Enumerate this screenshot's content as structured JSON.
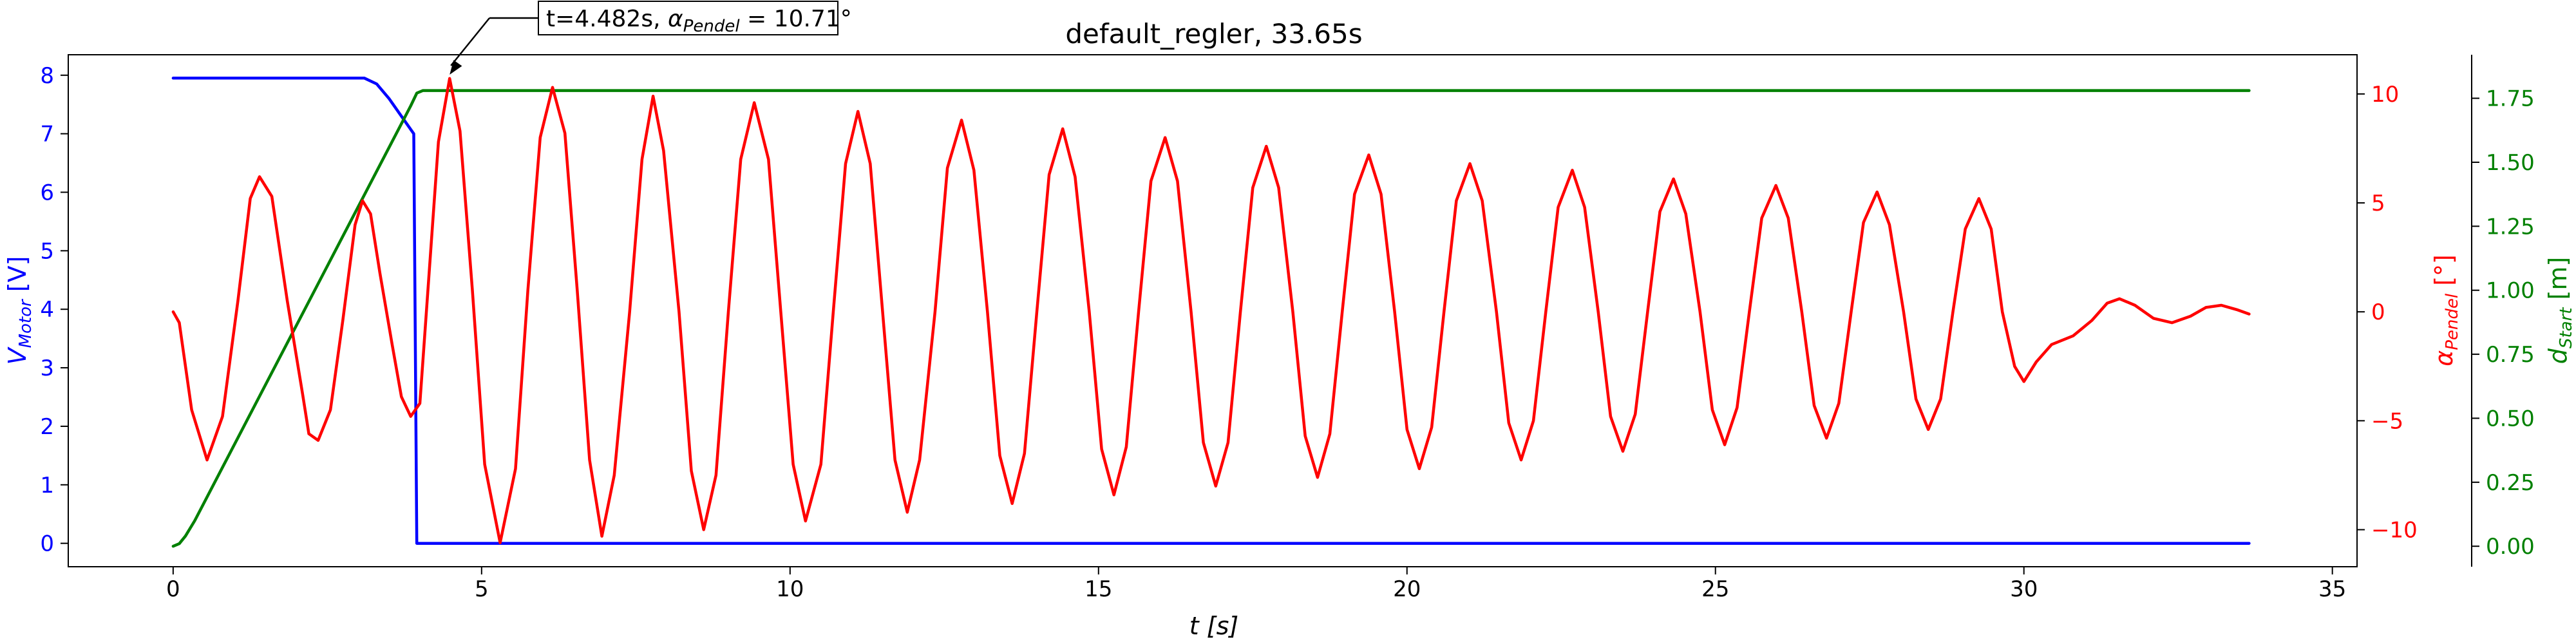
{
  "chart_data": {
    "type": "line",
    "title": "default_regler, 33.65s",
    "xlabel": "t [s]",
    "xlim": [
      -1.7,
      35.4
    ],
    "xticks": [
      0,
      5,
      10,
      15,
      20,
      25,
      30,
      35
    ],
    "grid": false,
    "axes": {
      "motor": {
        "label_main": "V",
        "label_sub": "Motor",
        "label_unit": " [V]",
        "color": "#0000ff",
        "ylim": [
          -0.4,
          8.35
        ],
        "ticks": [
          0,
          1,
          2,
          3,
          4,
          5,
          6,
          7,
          8
        ]
      },
      "pendel": {
        "label_main": "α",
        "label_sub": "Pendel",
        "label_unit": " [°]",
        "color": "#ff0000",
        "ylim": [
          -11.7,
          11.8
        ],
        "ticks": [
          -10,
          -5,
          0,
          5,
          10
        ],
        "tick_labels": [
          "−10",
          "−5",
          "0",
          "5",
          "10"
        ]
      },
      "start": {
        "label_main": "d",
        "label_sub": "Start",
        "label_unit": " [m]",
        "color": "#008000",
        "ylim": [
          -0.08,
          1.92
        ],
        "ticks": [
          0.0,
          0.25,
          0.5,
          0.75,
          1.0,
          1.25,
          1.5,
          1.75
        ],
        "tick_labels": [
          "0.00",
          "0.25",
          "0.50",
          "0.75",
          "1.00",
          "1.25",
          "1.50",
          "1.75"
        ]
      }
    },
    "series": [
      {
        "axis": "motor",
        "points": [
          [
            0,
            7.95
          ],
          [
            3.1,
            7.95
          ],
          [
            3.3,
            7.85
          ],
          [
            3.5,
            7.6
          ],
          [
            3.7,
            7.3
          ],
          [
            3.9,
            7.0
          ],
          [
            3.95,
            0
          ],
          [
            33.65,
            0
          ]
        ]
      },
      {
        "axis": "start",
        "points": [
          [
            0,
            0
          ],
          [
            0.1,
            0.01
          ],
          [
            0.2,
            0.04
          ],
          [
            0.35,
            0.1
          ],
          [
            3.85,
            1.72
          ],
          [
            3.95,
            1.77
          ],
          [
            4.05,
            1.78
          ],
          [
            33.65,
            1.78
          ]
        ]
      },
      {
        "axis": "pendel",
        "points": [
          [
            0,
            0
          ],
          [
            0.1,
            -0.5
          ],
          [
            0.3,
            -4.5
          ],
          [
            0.55,
            -6.8
          ],
          [
            0.8,
            -4.8
          ],
          [
            1.05,
            0.5
          ],
          [
            1.25,
            5.2
          ],
          [
            1.4,
            6.2
          ],
          [
            1.6,
            5.3
          ],
          [
            1.85,
            0.5
          ],
          [
            2.1,
            -3.8
          ],
          [
            2.2,
            -5.6
          ],
          [
            2.35,
            -5.9
          ],
          [
            2.55,
            -4.5
          ],
          [
            2.75,
            -0.4
          ],
          [
            2.95,
            4.0
          ],
          [
            3.07,
            5.1
          ],
          [
            3.2,
            4.5
          ],
          [
            3.35,
            1.8
          ],
          [
            3.55,
            -1.5
          ],
          [
            3.7,
            -3.9
          ],
          [
            3.85,
            -4.8
          ],
          [
            4.0,
            -4.2
          ],
          [
            4.15,
            1.8
          ],
          [
            4.3,
            7.8
          ],
          [
            4.482,
            10.71
          ],
          [
            4.65,
            8.3
          ],
          [
            4.85,
            1.0
          ],
          [
            5.05,
            -7.0
          ],
          [
            5.3,
            -10.6
          ],
          [
            5.55,
            -7.2
          ],
          [
            5.75,
            1.0
          ],
          [
            5.95,
            8.0
          ],
          [
            6.15,
            10.3
          ],
          [
            6.35,
            8.2
          ],
          [
            6.55,
            1.0
          ],
          [
            6.75,
            -6.8
          ],
          [
            6.95,
            -10.3
          ],
          [
            7.15,
            -7.5
          ],
          [
            7.4,
            0
          ],
          [
            7.6,
            7.0
          ],
          [
            7.78,
            9.9
          ],
          [
            7.95,
            7.4
          ],
          [
            8.2,
            0
          ],
          [
            8.4,
            -7.3
          ],
          [
            8.6,
            -10.0
          ],
          [
            8.8,
            -7.5
          ],
          [
            9.0,
            0
          ],
          [
            9.2,
            7.0
          ],
          [
            9.42,
            9.6
          ],
          [
            9.65,
            7.0
          ],
          [
            9.85,
            0
          ],
          [
            10.05,
            -7.0
          ],
          [
            10.25,
            -9.6
          ],
          [
            10.5,
            -7.0
          ],
          [
            10.7,
            0
          ],
          [
            10.9,
            6.8
          ],
          [
            11.1,
            9.2
          ],
          [
            11.3,
            6.8
          ],
          [
            11.5,
            0
          ],
          [
            11.7,
            -6.8
          ],
          [
            11.9,
            -9.2
          ],
          [
            12.1,
            -6.8
          ],
          [
            12.35,
            0
          ],
          [
            12.55,
            6.6
          ],
          [
            12.78,
            8.8
          ],
          [
            12.98,
            6.5
          ],
          [
            13.2,
            0
          ],
          [
            13.4,
            -6.6
          ],
          [
            13.6,
            -8.8
          ],
          [
            13.8,
            -6.5
          ],
          [
            14.0,
            0
          ],
          [
            14.2,
            6.3
          ],
          [
            14.42,
            8.4
          ],
          [
            14.62,
            6.2
          ],
          [
            14.85,
            0
          ],
          [
            15.05,
            -6.3
          ],
          [
            15.25,
            -8.4
          ],
          [
            15.45,
            -6.2
          ],
          [
            15.65,
            0
          ],
          [
            15.85,
            6.0
          ],
          [
            16.08,
            8.0
          ],
          [
            16.28,
            6.0
          ],
          [
            16.5,
            0
          ],
          [
            16.7,
            -6.0
          ],
          [
            16.9,
            -8.0
          ],
          [
            17.1,
            -6.0
          ],
          [
            17.3,
            0
          ],
          [
            17.5,
            5.7
          ],
          [
            17.72,
            7.6
          ],
          [
            17.92,
            5.7
          ],
          [
            18.15,
            0
          ],
          [
            18.35,
            -5.7
          ],
          [
            18.55,
            -7.6
          ],
          [
            18.75,
            -5.6
          ],
          [
            18.95,
            0
          ],
          [
            19.15,
            5.4
          ],
          [
            19.38,
            7.2
          ],
          [
            19.58,
            5.4
          ],
          [
            19.8,
            0
          ],
          [
            20.0,
            -5.4
          ],
          [
            20.2,
            -7.2
          ],
          [
            20.4,
            -5.3
          ],
          [
            20.6,
            0
          ],
          [
            20.8,
            5.1
          ],
          [
            21.02,
            6.8
          ],
          [
            21.22,
            5.1
          ],
          [
            21.45,
            0
          ],
          [
            21.65,
            -5.1
          ],
          [
            21.85,
            -6.8
          ],
          [
            22.05,
            -5.0
          ],
          [
            22.25,
            0
          ],
          [
            22.45,
            4.8
          ],
          [
            22.68,
            6.5
          ],
          [
            22.88,
            4.8
          ],
          [
            23.1,
            0
          ],
          [
            23.3,
            -4.8
          ],
          [
            23.5,
            -6.4
          ],
          [
            23.7,
            -4.7
          ],
          [
            23.9,
            0
          ],
          [
            24.1,
            4.6
          ],
          [
            24.32,
            6.1
          ],
          [
            24.52,
            4.5
          ],
          [
            24.75,
            0
          ],
          [
            24.95,
            -4.5
          ],
          [
            25.15,
            -6.1
          ],
          [
            25.35,
            -4.4
          ],
          [
            25.55,
            0
          ],
          [
            25.75,
            4.3
          ],
          [
            25.98,
            5.8
          ],
          [
            26.18,
            4.3
          ],
          [
            26.4,
            0
          ],
          [
            26.6,
            -4.3
          ],
          [
            26.8,
            -5.8
          ],
          [
            27.0,
            -4.2
          ],
          [
            27.2,
            0
          ],
          [
            27.4,
            4.1
          ],
          [
            27.62,
            5.5
          ],
          [
            27.82,
            4.0
          ],
          [
            28.05,
            0
          ],
          [
            28.25,
            -4.0
          ],
          [
            28.45,
            -5.4
          ],
          [
            28.65,
            -4.0
          ],
          [
            28.85,
            0
          ],
          [
            29.05,
            3.8
          ],
          [
            29.27,
            5.2
          ],
          [
            29.47,
            3.8
          ],
          [
            29.65,
            0
          ],
          [
            29.85,
            -2.5
          ],
          [
            30.0,
            -3.2
          ],
          [
            30.2,
            -2.3
          ],
          [
            30.45,
            -1.5
          ],
          [
            30.8,
            -1.1
          ],
          [
            31.1,
            -0.4
          ],
          [
            31.35,
            0.4
          ],
          [
            31.55,
            0.6
          ],
          [
            31.8,
            0.3
          ],
          [
            32.1,
            -0.3
          ],
          [
            32.4,
            -0.5
          ],
          [
            32.7,
            -0.2
          ],
          [
            32.95,
            0.2
          ],
          [
            33.2,
            0.3
          ],
          [
            33.45,
            0.1
          ],
          [
            33.65,
            -0.1
          ]
        ]
      }
    ],
    "annotation": {
      "text_prefix": "t=4.482s, ",
      "text_alpha": "α",
      "text_sub": "Pendel",
      "text_suffix": " = 10.71°",
      "x": 4.482,
      "y": 10.71,
      "axis": "pendel"
    }
  }
}
